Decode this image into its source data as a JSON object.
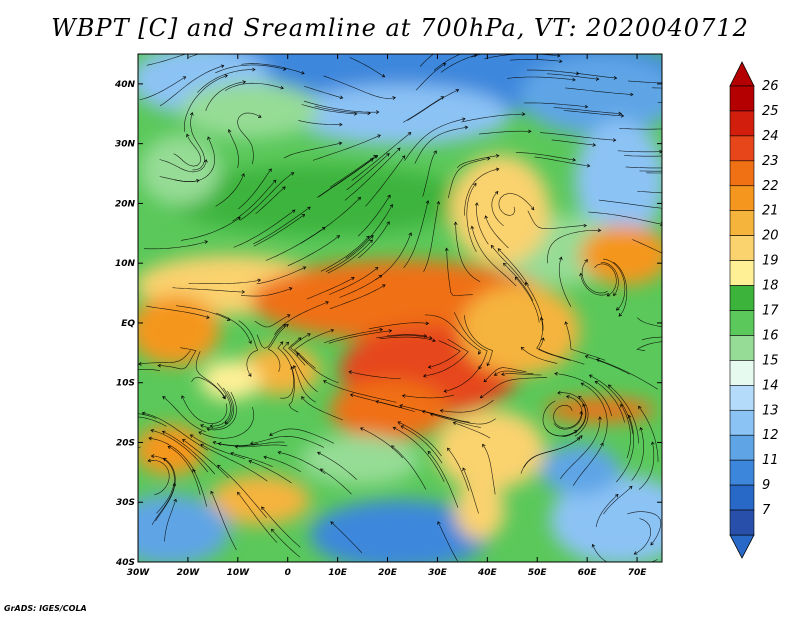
{
  "title": "WBPT [C] and Sreamline at 700hPa, VT: 2020040712",
  "credit": "GrADS: IGES/COLA",
  "axes": {
    "lon_ticks": [
      "30W",
      "20W",
      "10W",
      "0",
      "10E",
      "20E",
      "30E",
      "40E",
      "50E",
      "60E",
      "70E"
    ],
    "lon_values": [
      -30,
      -20,
      -10,
      0,
      10,
      20,
      30,
      40,
      50,
      60,
      70
    ],
    "lat_ticks": [
      "40N",
      "30N",
      "20N",
      "10N",
      "EQ",
      "10S",
      "20S",
      "30S",
      "40S"
    ],
    "lat_values": [
      40,
      30,
      20,
      10,
      0,
      -10,
      -20,
      -30,
      -40
    ],
    "lon_range": [
      -30,
      75
    ],
    "lat_range": [
      -40,
      45
    ]
  },
  "colorbar": {
    "labels": [
      "26",
      "25",
      "24",
      "23",
      "22",
      "21",
      "20",
      "19",
      "18",
      "17",
      "16",
      "15",
      "14",
      "13",
      "12",
      "11",
      "9",
      "7"
    ],
    "colors": [
      "#b40000",
      "#d21e0c",
      "#e6461a",
      "#f07014",
      "#f5961e",
      "#f5b43c",
      "#fad26e",
      "#fff096",
      "#3cb43c",
      "#5ac85a",
      "#96dc96",
      "#e6faf0",
      "#b4dcfa",
      "#8cc3f5",
      "#5fa5e6",
      "#3c87dc",
      "#2869c8",
      "#2850aa"
    ]
  },
  "icons": {
    "top": "triangle-up-icon",
    "bottom": "triangle-down-icon"
  }
}
